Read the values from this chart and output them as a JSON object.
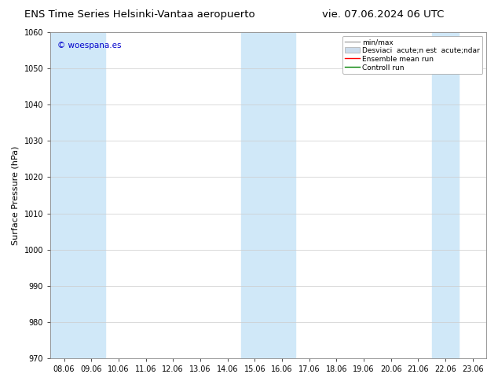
{
  "title": "ENS Time Series Helsinki-Vantaa aeropuerto",
  "title_right": "vie. 07.06.2024 06 UTC",
  "ylabel": "Surface Pressure (hPa)",
  "watermark": "© woespana.es",
  "ylim": [
    970,
    1060
  ],
  "yticks": [
    970,
    980,
    990,
    1000,
    1010,
    1020,
    1030,
    1040,
    1050,
    1060
  ],
  "xtick_labels": [
    "08.06",
    "09.06",
    "10.06",
    "11.06",
    "12.06",
    "13.06",
    "14.06",
    "15.06",
    "16.06",
    "17.06",
    "18.06",
    "19.06",
    "20.06",
    "21.06",
    "22.06",
    "23.06"
  ],
  "shaded_bands": [
    {
      "xmin": 0,
      "xmax": 2,
      "color": "#d0e8f8"
    },
    {
      "xmin": 7,
      "xmax": 9,
      "color": "#d0e8f8"
    },
    {
      "xmin": 14,
      "xmax": 15,
      "color": "#d0e8f8"
    }
  ],
  "legend_labels": [
    "min/max",
    "Desviaci  acute;n est  acute;ndar",
    "Ensemble mean run",
    "Controll run"
  ],
  "legend_colors": [
    "#a8a8a8",
    "#ccdcec",
    "#ff0000",
    "#008000"
  ],
  "background_color": "#ffffff",
  "plot_bg_color": "#ffffff",
  "title_fontsize": 9.5,
  "ylabel_fontsize": 8,
  "tick_fontsize": 7,
  "legend_fontsize": 6.5,
  "watermark_fontsize": 7.5,
  "watermark_color": "#0000cc"
}
